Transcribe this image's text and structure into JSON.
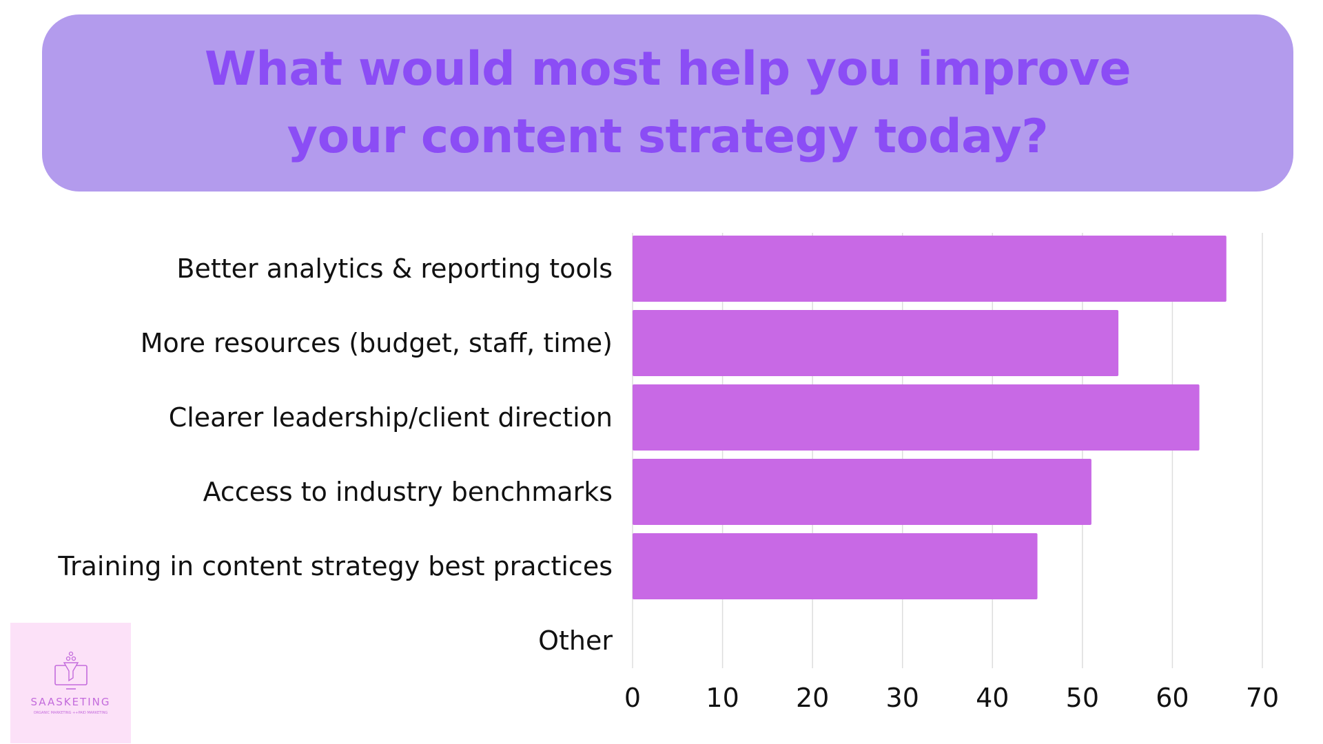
{
  "title": {
    "line1": "What would most help you improve",
    "line2": "your content strategy today?"
  },
  "colors": {
    "banner": "#b39bed",
    "title": "#8b4df5",
    "bar": "#c869e5",
    "grid": "#dddddd",
    "logo_bg": "#fce1f8",
    "logo_text": "#c36bdc"
  },
  "chart_data": {
    "type": "bar",
    "orientation": "horizontal",
    "categories": [
      "Better analytics & reporting tools",
      "More resources (budget, staff, time)",
      "Clearer leadership/client direction",
      "Access to industry benchmarks",
      "Training in content strategy best practices",
      "Other"
    ],
    "values": [
      66,
      54,
      63,
      51,
      45,
      0
    ],
    "xlim": [
      0,
      70
    ],
    "xticks": [
      "0",
      "10",
      "20",
      "30",
      "40",
      "50",
      "60",
      "70"
    ],
    "grid": "vertical",
    "title": "",
    "xlabel": "",
    "ylabel": ""
  },
  "logo": {
    "icon": "computer-funnel-icon",
    "name": "SAASKETING",
    "tagline": "ORGANIC MARKETING ++PAID MARKETING"
  }
}
